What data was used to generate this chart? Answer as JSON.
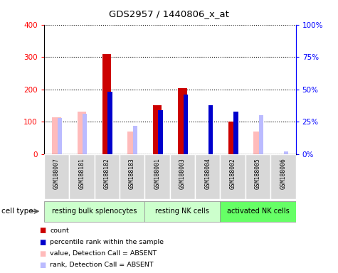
{
  "title": "GDS2957 / 1440806_x_at",
  "samples": [
    "GSM188007",
    "GSM188181",
    "GSM188182",
    "GSM188183",
    "GSM188001",
    "GSM188003",
    "GSM188004",
    "GSM188002",
    "GSM188005",
    "GSM188006"
  ],
  "count_values": [
    null,
    null,
    310,
    null,
    152,
    204,
    null,
    100,
    null,
    null
  ],
  "percentile_values": [
    null,
    null,
    48,
    null,
    34,
    46,
    38,
    33,
    null,
    null
  ],
  "absent_value_values": [
    113,
    132,
    null,
    70,
    null,
    null,
    null,
    null,
    70,
    null
  ],
  "absent_rank_values": [
    28,
    31,
    null,
    22,
    null,
    null,
    null,
    null,
    30,
    2
  ],
  "group_colors": [
    "#ccffcc",
    "#ccffcc",
    "#66ff66"
  ],
  "group_ranges": [
    [
      0,
      4
    ],
    [
      4,
      7
    ],
    [
      7,
      10
    ]
  ],
  "group_labels": [
    "resting bulk splenocytes",
    "resting NK cells",
    "activated NK cells"
  ],
  "ylim_left": [
    0,
    400
  ],
  "ylim_right": [
    0,
    100
  ],
  "yticks_left": [
    0,
    100,
    200,
    300,
    400
  ],
  "yticks_right": [
    0,
    25,
    50,
    75,
    100
  ],
  "yticklabels_right": [
    "0%",
    "25%",
    "50%",
    "75%",
    "100%"
  ],
  "color_count": "#cc0000",
  "color_percentile": "#0000cc",
  "color_absent_value": "#ffbbbb",
  "color_absent_rank": "#bbbbff",
  "legend_items": [
    {
      "label": "count",
      "color": "#cc0000"
    },
    {
      "label": "percentile rank within the sample",
      "color": "#0000cc"
    },
    {
      "label": "value, Detection Call = ABSENT",
      "color": "#ffbbbb"
    },
    {
      "label": "rank, Detection Call = ABSENT",
      "color": "#bbbbff"
    }
  ]
}
